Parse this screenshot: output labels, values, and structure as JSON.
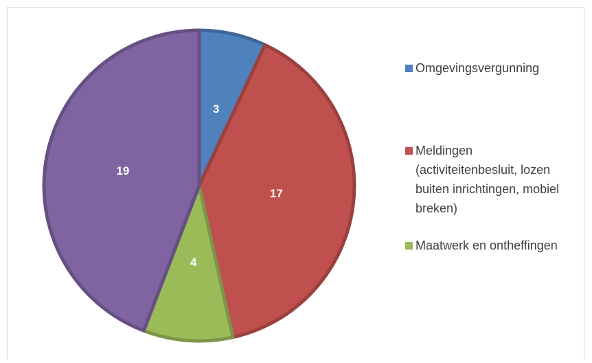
{
  "chart_data": {
    "type": "pie",
    "categories": [
      "Omgevingsvergunning",
      "Meldingen (activiteitenbesluit, lozen buiten inrichtingen, mobiel breken)",
      "Maatwerk en ontheffingen",
      null
    ],
    "values": [
      3,
      17,
      4,
      19
    ],
    "colors": [
      "#4f81bd",
      "#c0504d",
      "#9bbb59",
      "#8064a2"
    ],
    "legend": "right"
  }
}
